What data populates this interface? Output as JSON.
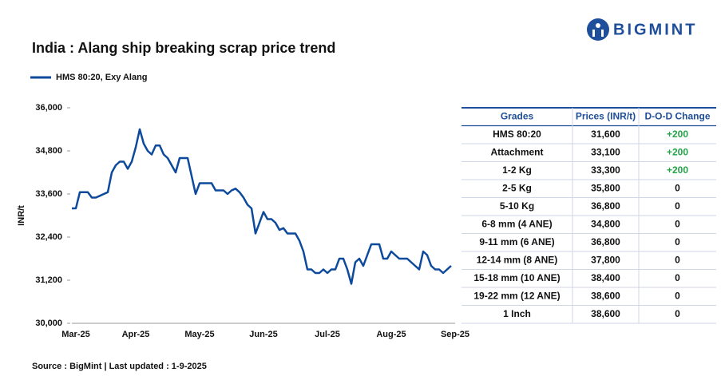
{
  "chart_data": {
    "type": "line",
    "title": "India : Alang ship breaking scrap price trend",
    "y_label": "INR/t",
    "categories": [
      null,
      "Mar-25",
      null,
      null,
      null,
      null,
      null,
      null,
      null,
      null,
      null,
      null,
      null,
      null,
      null,
      null,
      "Apr-25",
      null,
      null,
      null,
      null,
      null,
      null,
      null,
      null,
      null,
      null,
      null,
      null,
      null,
      null,
      null,
      "May-25",
      null,
      null,
      null,
      null,
      null,
      null,
      null,
      null,
      null,
      null,
      null,
      null,
      null,
      null,
      null,
      "Jun-25",
      null,
      null,
      null,
      null,
      null,
      null,
      null,
      null,
      null,
      null,
      null,
      null,
      null,
      null,
      null,
      "Jul-25",
      null,
      null,
      null,
      null,
      null,
      null,
      null,
      null,
      null,
      null,
      null,
      null,
      null,
      null,
      null,
      "Aug-25",
      null,
      null,
      null,
      null,
      null,
      null,
      null,
      null,
      null,
      null,
      null,
      null,
      null,
      null,
      null,
      "Sep-25"
    ],
    "series": [
      {
        "name": "HMS 80:20, Exy Alang",
        "color": "#0d4a9c",
        "values": [
          33200,
          33200,
          33650,
          33650,
          33650,
          33500,
          33500,
          33550,
          33600,
          33650,
          34200,
          34400,
          34500,
          34500,
          34300,
          34500,
          34900,
          35400,
          35000,
          34800,
          34700,
          34950,
          34950,
          34700,
          34600,
          34400,
          34200,
          34600,
          34600,
          34600,
          34100,
          33600,
          33900,
          33900,
          33900,
          33900,
          33700,
          33700,
          33700,
          33600,
          33700,
          33750,
          33650,
          33500,
          33300,
          33200,
          32500,
          32800,
          33100,
          32900,
          32900,
          32800,
          32600,
          32650,
          32500,
          32500,
          32500,
          32300,
          32000,
          31500,
          31500,
          31400,
          31400,
          31500,
          31400,
          31500,
          31500,
          31800,
          31800,
          31500,
          31100,
          31700,
          31800,
          31600,
          31900,
          32200,
          32200,
          32200,
          31800,
          31800,
          32000,
          31900,
          31800,
          31800,
          31800,
          31700,
          31600,
          31500,
          32000,
          31900,
          31600,
          31500,
          31500,
          31400,
          31500,
          31600,
          null
        ]
      }
    ],
    "ylim": [
      30000,
      36000
    ],
    "yticks": [
      {
        "value": 30000,
        "label": "30,000"
      },
      {
        "value": 31200,
        "label": "31,200"
      },
      {
        "value": 32400,
        "label": "32,400"
      },
      {
        "value": 33600,
        "label": "33,600"
      },
      {
        "value": 34800,
        "label": "34,800"
      },
      {
        "value": 36000,
        "label": "36,000"
      }
    ],
    "grid": false,
    "legend": "top-left"
  },
  "table": {
    "columns": [
      "Grades",
      "Prices (INR/t)",
      "D-O-D Change"
    ],
    "header_color": "#1f4e9a",
    "positive_color": "#22a447",
    "rows": [
      [
        "HMS 80:20",
        "31,600",
        "+200"
      ],
      [
        "Attachment",
        "33,100",
        "+200"
      ],
      [
        "1-2 Kg",
        "33,300",
        "+200"
      ],
      [
        "2-5 Kg",
        "35,800",
        "0"
      ],
      [
        "5-10 Kg",
        "36,800",
        "0"
      ],
      [
        "6-8 mm (4 ANE)",
        "34,800",
        "0"
      ],
      [
        "9-11 mm (6 ANE)",
        "36,800",
        "0"
      ],
      [
        "12-14 mm (8 ANE)",
        "37,800",
        "0"
      ],
      [
        "15-18 mm (10 ANE)",
        "38,400",
        "0"
      ],
      [
        "19-22 mm (12 ANE)",
        "38,600",
        "0"
      ],
      [
        "1 Inch",
        "38,600",
        "0"
      ]
    ]
  },
  "source": "Source : BigMint | Last updated : 1-9-2025",
  "logo": "BIGMINT"
}
